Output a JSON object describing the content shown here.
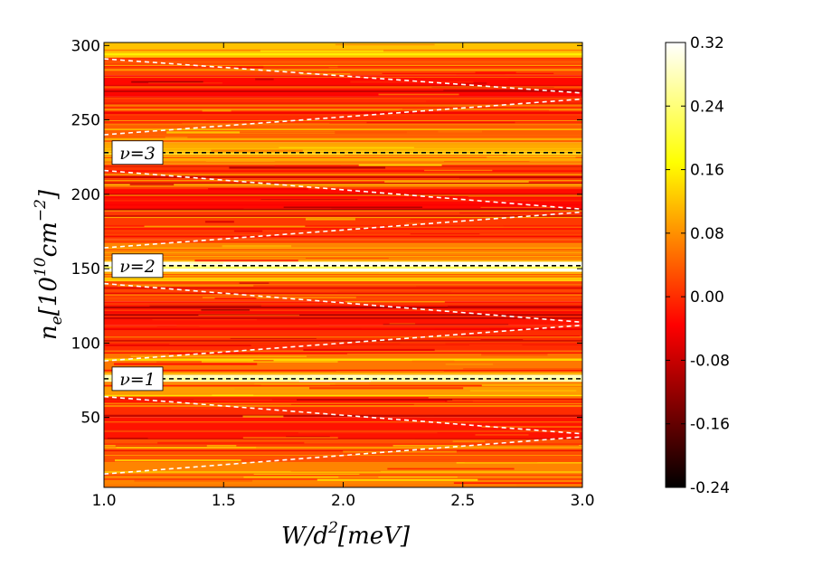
{
  "chart_data": {
    "type": "heatmap",
    "title": "",
    "xlabel": {
      "base": "W/d",
      "sup": "2",
      "rest": "[meV]"
    },
    "ylabel": {
      "n": "n",
      "sub": "e",
      "open": "[10",
      "sup1": "10",
      "mid": "cm",
      "sup2": "−2",
      "close": "]"
    },
    "xlim": [
      1.0,
      3.0
    ],
    "ylim": [
      3,
      302
    ],
    "x_ticks": [
      {
        "value": 1.0,
        "label": "1.0"
      },
      {
        "value": 1.5,
        "label": "1.5"
      },
      {
        "value": 2.0,
        "label": "2.0"
      },
      {
        "value": 2.5,
        "label": "2.5"
      },
      {
        "value": 3.0,
        "label": "3.0"
      }
    ],
    "y_ticks": [
      {
        "value": 50,
        "label": "50"
      },
      {
        "value": 100,
        "label": "100"
      },
      {
        "value": 150,
        "label": "150"
      },
      {
        "value": 200,
        "label": "200"
      },
      {
        "value": 250,
        "label": "250"
      },
      {
        "value": 300,
        "label": "300"
      }
    ],
    "colormap": "hot",
    "colorbar": {
      "min": -0.24,
      "max": 0.32,
      "ticks": [
        {
          "value": 0.32,
          "label": "0.32"
        },
        {
          "value": 0.24,
          "label": "0.24"
        },
        {
          "value": 0.16,
          "label": "0.16"
        },
        {
          "value": 0.08,
          "label": "0.08"
        },
        {
          "value": 0.0,
          "label": "0.00"
        },
        {
          "value": -0.08,
          "label": "-0.08"
        },
        {
          "value": -0.16,
          "label": "-0.16"
        },
        {
          "value": -0.24,
          "label": "-0.24"
        }
      ]
    },
    "filling_factor_lines": [
      {
        "label": "ν=1",
        "y": 76,
        "label_y": 76,
        "color": "#000000"
      },
      {
        "label": "ν=2",
        "y": 152,
        "label_y": 152,
        "color": "#000000"
      },
      {
        "label": "ν=3",
        "y": 228,
        "label_y": 228,
        "color": "#000000"
      }
    ],
    "dashed_white_lines": [
      {
        "x": [
          1.0,
          3.0
        ],
        "y": [
          291,
          268
        ]
      },
      {
        "x": [
          1.0,
          3.0
        ],
        "y": [
          240,
          264
        ]
      },
      {
        "x": [
          1.0,
          3.0
        ],
        "y": [
          216,
          190
        ]
      },
      {
        "x": [
          1.0,
          3.0
        ],
        "y": [
          164,
          188
        ]
      },
      {
        "x": [
          1.0,
          3.0
        ],
        "y": [
          140,
          114
        ]
      },
      {
        "x": [
          1.0,
          3.0
        ],
        "y": [
          88,
          112
        ]
      },
      {
        "x": [
          1.0,
          3.0
        ],
        "y": [
          64,
          39
        ]
      },
      {
        "x": [
          1.0,
          3.0
        ],
        "y": [
          12,
          37
        ]
      }
    ],
    "horizontal_bands": [
      {
        "y": [
          3,
          20
        ],
        "value": 0.07
      },
      {
        "y": [
          20,
          35
        ],
        "value": 0.03
      },
      {
        "y": [
          35,
          50
        ],
        "value": -0.02
      },
      {
        "y": [
          50,
          64
        ],
        "value": 0.0
      },
      {
        "y": [
          64,
          74
        ],
        "value": 0.09
      },
      {
        "y": [
          74,
          79
        ],
        "value": 0.28
      },
      {
        "y": [
          79,
          95
        ],
        "value": 0.06
      },
      {
        "y": [
          95,
          112
        ],
        "value": 0.0
      },
      {
        "y": [
          112,
          128
        ],
        "value": -0.02
      },
      {
        "y": [
          128,
          142
        ],
        "value": 0.02
      },
      {
        "y": [
          142,
          148
        ],
        "value": 0.12
      },
      {
        "y": [
          148,
          155
        ],
        "value": 0.31
      },
      {
        "y": [
          155,
          170
        ],
        "value": 0.07
      },
      {
        "y": [
          170,
          188
        ],
        "value": 0.01
      },
      {
        "y": [
          188,
          205
        ],
        "value": -0.03
      },
      {
        "y": [
          205,
          220
        ],
        "value": 0.01
      },
      {
        "y": [
          220,
          235
        ],
        "value": 0.1
      },
      {
        "y": [
          235,
          250
        ],
        "value": 0.04
      },
      {
        "y": [
          250,
          266
        ],
        "value": 0.0
      },
      {
        "y": [
          266,
          280
        ],
        "value": -0.03
      },
      {
        "y": [
          280,
          292
        ],
        "value": 0.02
      },
      {
        "y": [
          292,
          302
        ],
        "value": 0.12
      }
    ]
  }
}
